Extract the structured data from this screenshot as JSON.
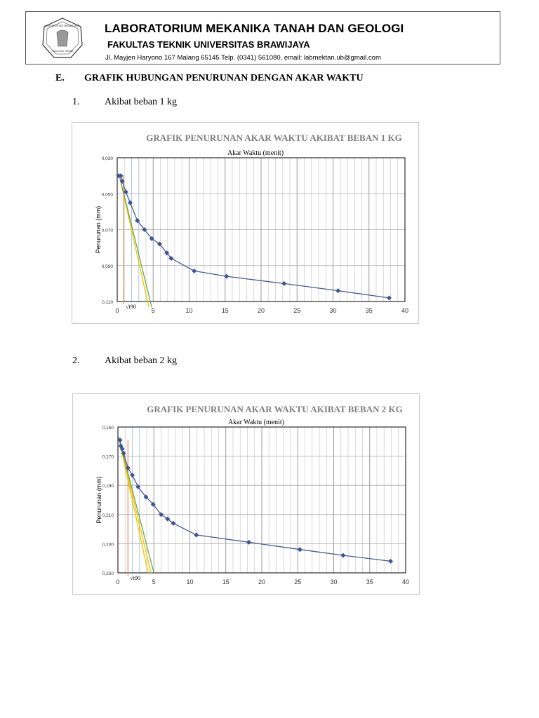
{
  "letterhead": {
    "logo_icon": "university-seal-icon",
    "title": "LABORATORIUM MEKANIKA TANAH DAN GEOLOGI",
    "subtitle": "FAKULTAS TEKNIK UNIVERSITAS BRAWIJAYA",
    "address": "Jl. Mayjen Haryono 167 Malang 65145 Telp. (0341) 561080, email: labmektan.ub@gmail.com"
  },
  "section": {
    "number": "E.",
    "title": "GRAFIK HUBUNGAN PENURUNAN DENGAN AKAR WAKTU"
  },
  "items": [
    {
      "number": "1.",
      "label": "Akibat beban 1 kg"
    },
    {
      "number": "2.",
      "label": "Akibat beban 2 kg"
    }
  ],
  "colors": {
    "series": "#4a5a9a",
    "marker": "#3f5496",
    "tangent_yellow": "#f2c200",
    "tangent_green": "#6aa84f",
    "t90_line": "#e8956a",
    "minor_vline_blue": "#a9c4e8",
    "title_gray": "#7f7f7f",
    "grid": "#bfbfbf"
  },
  "chart_data": [
    {
      "type": "line",
      "title": "GRAFIK PENURUNAN AKAR WAKTU AKIBAT BEBAN 1 KG",
      "xlabel": "Akar Waktu (menit)",
      "ylabel": "Penurunan (mm)",
      "xlim": [
        0,
        40
      ],
      "ylim": [
        0.03,
        0.11
      ],
      "y_inverted": true,
      "grid": true,
      "legend": "none",
      "x_ticks": [
        "0",
        "5",
        "10",
        "15",
        "20",
        "25",
        "30",
        "35",
        "40"
      ],
      "y_ticks": [
        "0,030",
        "0,050",
        "0,070",
        "0,090",
        "0,110"
      ],
      "annotation": "√t90",
      "series": [
        {
          "name": "Penurunan",
          "x": [
            0.2,
            0.5,
            0.7,
            1.2,
            1.8,
            2.8,
            3.8,
            4.8,
            5.9,
            6.9,
            7.5,
            10.7,
            15.2,
            23.2,
            30.7,
            37.8
          ],
          "y": [
            0.04,
            0.04,
            0.043,
            0.049,
            0.055,
            0.065,
            0.07,
            0.075,
            0.078,
            0.083,
            0.086,
            0.093,
            0.096,
            0.1,
            0.104,
            0.108
          ]
        }
      ],
      "tangent_lines": [
        {
          "color": "yellow",
          "from": [
            0.3,
            0.04
          ],
          "to": [
            4.4,
            0.1155
          ]
        },
        {
          "color": "green",
          "from": [
            0.3,
            0.04
          ],
          "to": [
            4.8,
            0.1155
          ]
        }
      ],
      "t90_marker_x": 0.9
    },
    {
      "type": "line",
      "title": "GRAFIK PENURUNAN AKAR WAKTU AKIBAT BEBAN 2 KG",
      "xlabel": "Akar Waktu (menit)",
      "ylabel": "Penurunan (mm)",
      "xlim": [
        0,
        40
      ],
      "ylim": [
        0.15,
        0.25
      ],
      "y_inverted": true,
      "grid": true,
      "legend": "none",
      "x_ticks": [
        "0",
        "5",
        "10",
        "15",
        "20",
        "25",
        "30",
        "35",
        "40"
      ],
      "y_ticks": [
        "0,150",
        "0,170",
        "0,190",
        "0,210",
        "0,230",
        "0,250"
      ],
      "annotation": "√t90",
      "series": [
        {
          "name": "Penurunan",
          "x": [
            0.3,
            0.4,
            0.6,
            0.8,
            1.4,
            2.0,
            2.8,
            3.9,
            4.9,
            6.0,
            6.9,
            7.7,
            10.9,
            18.2,
            25.3,
            31.3,
            37.9
          ],
          "y": [
            0.159,
            0.163,
            0.165,
            0.168,
            0.178,
            0.183,
            0.191,
            0.198,
            0.203,
            0.21,
            0.213,
            0.216,
            0.224,
            0.229,
            0.234,
            0.238,
            0.242
          ]
        }
      ],
      "tangent_lines": [
        {
          "color": "yellow",
          "from": [
            0.1,
            0.157
          ],
          "to": [
            4.2,
            0.25
          ]
        },
        {
          "color": "yellow",
          "from": [
            0.1,
            0.157
          ],
          "to": [
            4.6,
            0.25
          ]
        },
        {
          "color": "green",
          "from": [
            0.1,
            0.157
          ],
          "to": [
            5.0,
            0.25
          ]
        }
      ],
      "t90_marker_x": 1.4
    }
  ]
}
